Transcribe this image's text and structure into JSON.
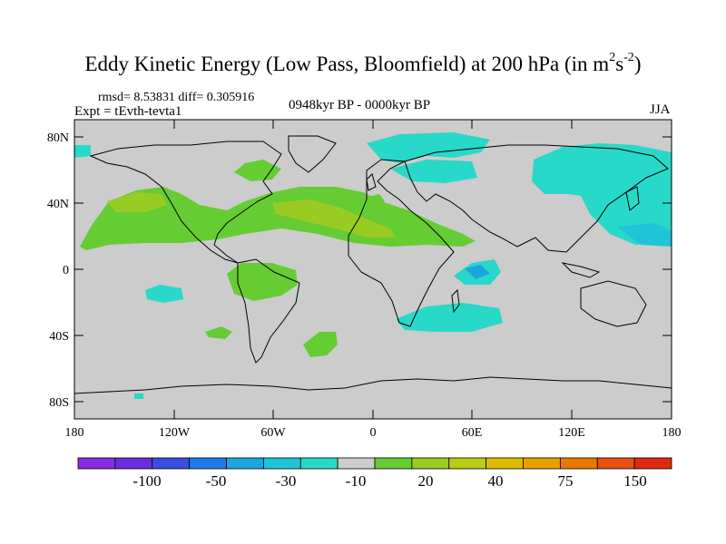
{
  "title": {
    "main": "Eddy Kinetic Energy (Low Pass, Bloomfield) at 200 hPa (in m",
    "sup1": "2",
    "mid": "s",
    "sup2": "-2",
    "end": ")"
  },
  "stats_line": "rmsd= 8.53831 diff= 0.305916",
  "experiment": "Expt = tEvth-tevta1",
  "period": "0948kyr BP - 0000kyr BP",
  "season": "JJA",
  "lat_ticks": [
    "80N",
    "40N",
    "0",
    "40S",
    "80S"
  ],
  "lon_ticks": [
    "180",
    "120W",
    "60W",
    "0",
    "60E",
    "120E",
    "180"
  ],
  "colorbar": {
    "colors": [
      "#8a2be2",
      "#6a2ee0",
      "#3a4fe0",
      "#1e7ae8",
      "#1aa6e0",
      "#20c4d8",
      "#28d8c8",
      "#cccccc",
      "#66cc33",
      "#99cc22",
      "#bbcc11",
      "#ddbb00",
      "#e8a000",
      "#e87800",
      "#e85010",
      "#e02a10"
    ],
    "labels": [
      "-100",
      "-50",
      "-30",
      "-10",
      "20",
      "40",
      "75",
      "150"
    ]
  }
}
